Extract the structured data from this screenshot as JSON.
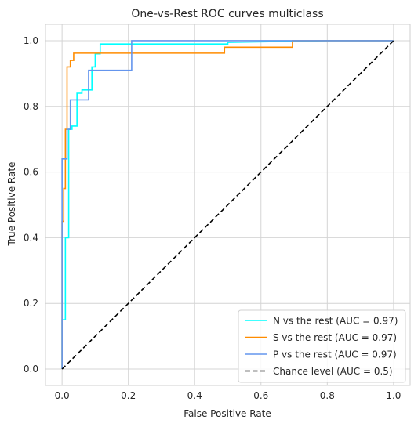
{
  "chart_data": {
    "type": "line",
    "title": "One-vs-Rest ROC curves multiclass",
    "xlabel": "False Positive Rate",
    "ylabel": "True Positive Rate",
    "xlim": [
      -0.05,
      1.05
    ],
    "ylim": [
      -0.05,
      1.05
    ],
    "xticks": [
      0.0,
      0.2,
      0.4,
      0.6,
      0.8,
      1.0
    ],
    "yticks": [
      0.0,
      0.2,
      0.4,
      0.6,
      0.8,
      1.0
    ],
    "xtick_labels": [
      "0.0",
      "0.2",
      "0.4",
      "0.6",
      "0.8",
      "1.0"
    ],
    "ytick_labels": [
      "0.0",
      "0.2",
      "0.4",
      "0.6",
      "0.8",
      "1.0"
    ],
    "grid": true,
    "legend_position": "lower-right",
    "series": [
      {
        "name": "N vs the rest (AUC = 0.97)",
        "color": "#00ffff",
        "style": "solid",
        "x": [
          0.0,
          0.0,
          0.01,
          0.01,
          0.02,
          0.02,
          0.03,
          0.03,
          0.045,
          0.045,
          0.06,
          0.06,
          0.09,
          0.09,
          0.1,
          0.1,
          0.115,
          0.115,
          0.5,
          0.5,
          0.8,
          1.0
        ],
        "y": [
          0.0,
          0.15,
          0.15,
          0.4,
          0.4,
          0.73,
          0.73,
          0.74,
          0.74,
          0.84,
          0.84,
          0.85,
          0.85,
          0.92,
          0.92,
          0.96,
          0.96,
          0.99,
          0.99,
          0.995,
          1.0,
          1.0
        ]
      },
      {
        "name": "S vs the rest (AUC = 0.97)",
        "color": "#ff8c00",
        "style": "solid",
        "x": [
          0.0,
          0.0,
          0.005,
          0.005,
          0.01,
          0.01,
          0.015,
          0.015,
          0.025,
          0.025,
          0.035,
          0.035,
          0.49,
          0.49,
          0.695,
          0.695,
          1.0
        ],
        "y": [
          0.0,
          0.45,
          0.45,
          0.55,
          0.55,
          0.73,
          0.73,
          0.92,
          0.92,
          0.94,
          0.94,
          0.962,
          0.962,
          0.98,
          0.98,
          1.0,
          1.0
        ]
      },
      {
        "name": "P vs the rest (AUC = 0.97)",
        "color": "#6495ed",
        "style": "solid",
        "x": [
          0.0,
          0.0,
          0.015,
          0.015,
          0.025,
          0.025,
          0.08,
          0.08,
          0.21,
          0.21,
          1.0
        ],
        "y": [
          0.0,
          0.64,
          0.64,
          0.73,
          0.73,
          0.82,
          0.82,
          0.91,
          0.91,
          1.0,
          1.0
        ]
      },
      {
        "name": "Chance level (AUC = 0.5)",
        "color": "#000000",
        "style": "dashed",
        "x": [
          0.0,
          1.0
        ],
        "y": [
          0.0,
          1.0
        ]
      }
    ]
  }
}
